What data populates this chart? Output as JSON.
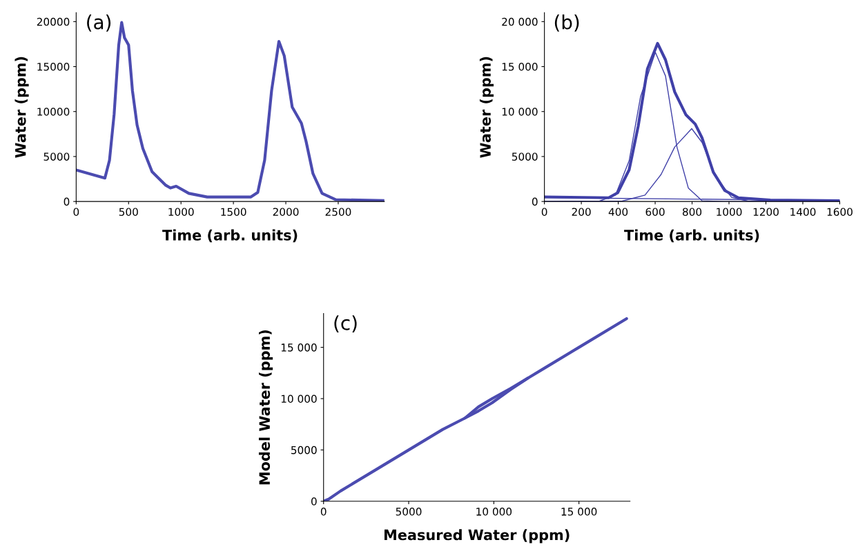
{
  "chart_data": [
    {
      "type": "line",
      "annotations": [
        "(a)"
      ],
      "xlabel": "Time (arb. units)",
      "ylabel": "Water (ppm)",
      "xlim": [
        0,
        2940
      ],
      "ylim": [
        0,
        21000
      ],
      "xticks": [
        0,
        500,
        1000,
        1500,
        2000,
        2500
      ],
      "yticks": [
        0,
        5000,
        10000,
        15000,
        20000
      ],
      "series": [
        {
          "color": "#4b4bb0",
          "x": [
            0,
            274,
            318,
            362,
            406,
            434,
            461,
            500,
            537,
            581,
            636,
            724,
            855,
            899,
            954,
            1075,
            1250,
            1667,
            1732,
            1798,
            1864,
            1934,
            1985,
            2061,
            2149,
            2193,
            2259,
            2346,
            2478,
            2938
          ],
          "values": [
            3500,
            2600,
            4600,
            9700,
            17400,
            19900,
            18200,
            17400,
            12300,
            8500,
            5900,
            3300,
            1800,
            1500,
            1700,
            900,
            500,
            500,
            1000,
            4600,
            12300,
            17800,
            16200,
            10500,
            8700,
            6700,
            3100,
            900,
            200,
            100
          ]
        }
      ]
    },
    {
      "type": "line",
      "annotations": [
        "(b)"
      ],
      "xlabel": "Time (arb. units)",
      "ylabel": "Water (ppm)",
      "xlim": [
        0,
        1600
      ],
      "ylim": [
        0,
        21000
      ],
      "xticks": [
        0,
        200,
        400,
        600,
        800,
        1000,
        1200,
        1400,
        1600
      ],
      "yticks": [
        0,
        5000,
        {
          "value": 10000,
          "label": "10 000"
        },
        {
          "value": 15000,
          "label": "15 000"
        },
        {
          "value": 20000,
          "label": "20 000"
        }
      ],
      "series": [
        {
          "color": "#4040a8",
          "x": [
            0,
            348,
            397,
            459,
            508,
            558,
            613,
            656,
            706,
            767,
            817,
            854,
            915,
            977,
            1051,
            1224,
            1600
          ],
          "values": [
            510,
            410,
            970,
            3520,
            8360,
            14730,
            17580,
            15750,
            12180,
            9630,
            8610,
            7080,
            3260,
            1220,
            410,
            150,
            80
          ]
        },
        {
          "color": "#4040a8",
          "x": [
            0,
            299,
            385,
            459,
            521,
            601,
            656,
            718,
            780,
            854,
            977,
            1600
          ],
          "values": [
            0,
            50,
            710,
            4530,
            11670,
            16590,
            13960,
            6060,
            1480,
            80,
            0,
            0
          ]
        },
        {
          "color": "#4040a8",
          "x": [
            0,
            422,
            545,
            632,
            706,
            798,
            854,
            928,
            1014,
            1100,
            1600
          ],
          "values": [
            0,
            50,
            710,
            3000,
            6060,
            8100,
            6570,
            2750,
            460,
            50,
            0
          ]
        },
        {
          "color": "#4040a8",
          "x": [
            0,
            1600
          ],
          "values": [
            430,
            100
          ]
        }
      ]
    },
    {
      "type": "line",
      "annotations": [
        "(c)"
      ],
      "xlabel": "Measured Water (ppm)",
      "ylabel": "Model Water (ppm)",
      "xlim": [
        0,
        18000
      ],
      "ylim": [
        0,
        18300
      ],
      "xticks": [
        0,
        5000,
        {
          "value": 10000,
          "label": "10 000"
        },
        {
          "value": 15000,
          "label": "15 000"
        }
      ],
      "yticks": [
        0,
        5000,
        {
          "value": 10000,
          "label": "10 000"
        },
        {
          "value": 15000,
          "label": "15 000"
        }
      ],
      "series": [
        {
          "color": "#4b4bb0",
          "x": [
            0,
            300,
            1000,
            3000,
            5000,
            7000,
            8300,
            9100,
            9900,
            11000,
            13000,
            15000,
            17800
          ],
          "values": [
            0,
            200,
            1000,
            3000,
            5000,
            7000,
            8100,
            9200,
            10000,
            11000,
            13000,
            15000,
            17800
          ]
        },
        {
          "color": "#4b4bb0",
          "x": [
            8300,
            9100,
            9900,
            11000,
            12000
          ],
          "values": [
            8100,
            8800,
            9600,
            10900,
            12000
          ]
        }
      ]
    }
  ]
}
